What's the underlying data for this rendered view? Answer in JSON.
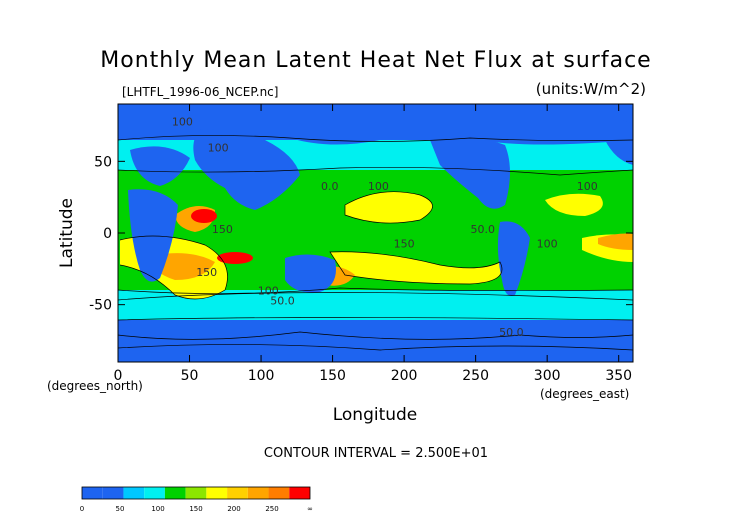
{
  "chart_data": {
    "type": "heatmap",
    "title": "Monthly Mean Latent Heat Net Flux at surface",
    "file_label": "[LHTFL_1996-06_NCEP.nc]",
    "units_label": "(units:W/m^2)",
    "xlabel": "Longitude",
    "ylabel": "Latitude",
    "x_unit_label": "(degrees_east)",
    "y_unit_label": "(degrees_north)",
    "xlim": [
      0,
      360
    ],
    "ylim": [
      -90,
      90
    ],
    "x_ticks": [
      0,
      50,
      100,
      150,
      200,
      250,
      300,
      350
    ],
    "y_ticks": [
      -50,
      0,
      50
    ],
    "contour_interval_text": "CONTOUR INTERVAL = 2.500E+01",
    "contour_labels": [
      {
        "text": "100",
        "lon": 45,
        "lat": 75
      },
      {
        "text": "100",
        "lon": 70,
        "lat": 57
      },
      {
        "text": "100",
        "lon": 182,
        "lat": 30
      },
      {
        "text": "100",
        "lon": 328,
        "lat": 30
      },
      {
        "text": "150",
        "lon": 73,
        "lat": 0
      },
      {
        "text": "150",
        "lon": 200,
        "lat": -10
      },
      {
        "text": "150",
        "lon": 62,
        "lat": -30
      },
      {
        "text": "50.0",
        "lon": 255,
        "lat": 0
      },
      {
        "text": "100",
        "lon": 300,
        "lat": -10
      },
      {
        "text": "100",
        "lon": 105,
        "lat": -43
      },
      {
        "text": "50.0",
        "lon": 115,
        "lat": -50
      },
      {
        "text": "50.0",
        "lon": 275,
        "lat": -72
      },
      {
        "text": "0.0",
        "lon": 148,
        "lat": 30
      }
    ],
    "colorbar": {
      "levels": [
        0,
        25,
        50,
        75,
        100,
        125,
        150,
        175,
        200,
        225,
        250,
        275
      ],
      "colors": [
        "#1e64f0",
        "#1e64f0",
        "#00c8ff",
        "#00f0f0",
        "#00d200",
        "#8ce600",
        "#ffff00",
        "#ffd000",
        "#ffa500",
        "#ff7d00",
        "#ff0000"
      ],
      "tick_labels": [
        "0",
        "50",
        "100",
        "150",
        "200",
        "250",
        "∞"
      ]
    }
  }
}
